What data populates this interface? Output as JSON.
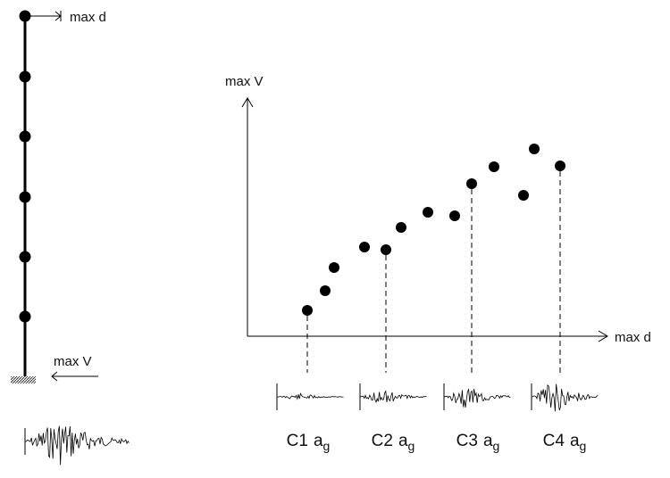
{
  "column": {
    "top_label": "max d",
    "base_label": "max V"
  },
  "plot": {
    "y_axis_label": "max V",
    "x_axis_label": "max d",
    "records": [
      {
        "factor": "C1",
        "base": "a",
        "sub": "g"
      },
      {
        "factor": "C2",
        "base": "a",
        "sub": "g"
      },
      {
        "factor": "C3",
        "base": "a",
        "sub": "g"
      },
      {
        "factor": "C4",
        "base": "a",
        "sub": "g"
      }
    ]
  }
}
